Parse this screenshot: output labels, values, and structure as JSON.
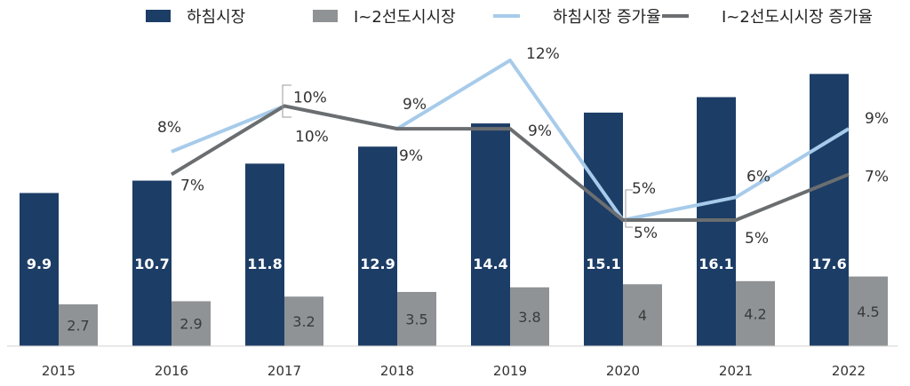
{
  "chart_data": {
    "type": "bar",
    "categories": [
      "2015",
      "2016",
      "2017",
      "2018",
      "2019",
      "2020",
      "2021",
      "2022"
    ],
    "series": [
      {
        "name": "하침시장",
        "kind": "bar",
        "color": "#1c3d66",
        "values": [
          9.9,
          10.7,
          11.8,
          12.9,
          14.4,
          15.1,
          16.1,
          17.6
        ]
      },
      {
        "name": "Ⅰ~2선도시시장",
        "kind": "bar",
        "color": "#8f9396",
        "values": [
          2.7,
          2.9,
          3.2,
          3.5,
          3.8,
          4.0,
          4.2,
          4.5
        ]
      },
      {
        "name": "하침시장 증가율",
        "kind": "line",
        "color": "#a7cbea",
        "values": [
          null,
          8,
          10,
          9,
          12,
          5,
          6,
          9
        ],
        "labels": [
          "",
          "8%",
          "10%",
          "9%",
          "12%",
          "5%",
          "6%",
          "9%"
        ]
      },
      {
        "name": "Ⅰ~2선도시시장 증가율",
        "kind": "line",
        "color": "#6b6e70",
        "values": [
          null,
          7,
          10,
          9,
          9,
          5,
          5,
          7
        ],
        "labels": [
          "",
          "7%",
          "10%",
          "9%",
          "9%",
          "5%",
          "5%",
          "7%"
        ]
      }
    ],
    "legend": "top-center",
    "grid": false,
    "ylim_bar": [
      0,
      19.8
    ],
    "ylim_line": [
      0,
      12
    ]
  }
}
